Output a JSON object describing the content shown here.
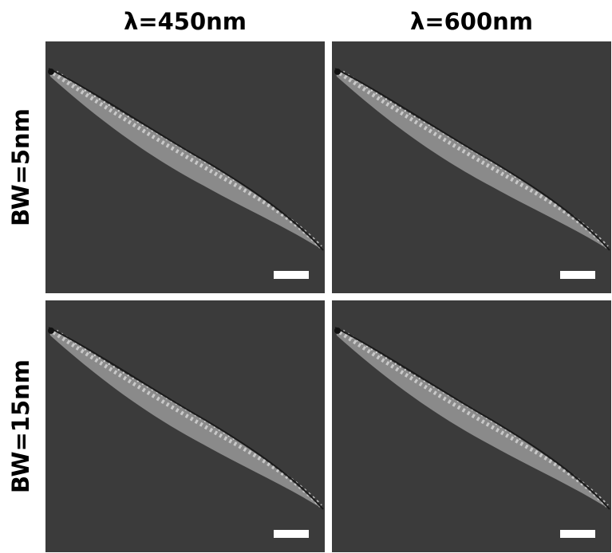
{
  "columns": [
    "λ=450nm",
    "λ=600nm"
  ],
  "rows": [
    "BW=5nm",
    "BW=15nm"
  ]
}
